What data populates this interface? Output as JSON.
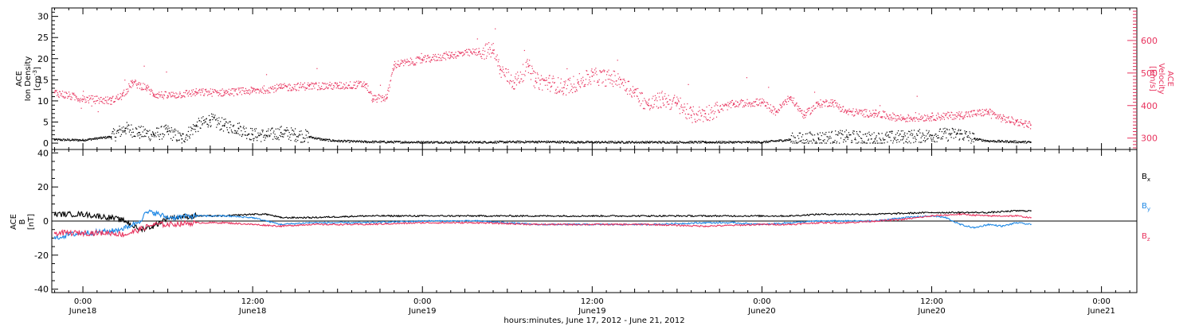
{
  "colors": {
    "black": "#000000",
    "pink": "#e8335e",
    "blue": "#1e88e5"
  },
  "xaxis": {
    "ticks": [
      {
        "t": 0,
        "time": "0:00",
        "day": "June18"
      },
      {
        "t": 12,
        "time": "12:00",
        "day": "June18"
      },
      {
        "t": 24,
        "time": "0:00",
        "day": "June19"
      },
      {
        "t": 36,
        "time": "12:00",
        "day": "June19"
      },
      {
        "t": 48,
        "time": "0:00",
        "day": "June20"
      },
      {
        "t": 60,
        "time": "12:00",
        "day": "June20"
      },
      {
        "t": 72,
        "time": "0:00",
        "day": "June21"
      }
    ],
    "title": "hours:minutes, June 17, 2012 - June 21, 2012"
  },
  "chart_data": [
    {
      "type": "scatter",
      "panel": "plasma",
      "x_units": "hours since June 18 0:00",
      "x_range": [
        -2.2,
        74.5
      ],
      "left_axis": {
        "label_lines": [
          "ACE",
          "Ion Density"
        ],
        "units": "[cm",
        "units_sup": "-3",
        "units_close": "]",
        "range": [
          -1.5,
          32
        ],
        "ticks": [
          0,
          5,
          10,
          15,
          20,
          25,
          30
        ]
      },
      "right_axis": {
        "label_lines": [
          "ACE",
          "Velocity"
        ],
        "units": "[km/s]",
        "range": [
          265,
          700
        ],
        "ticks": [
          300,
          400,
          500,
          600
        ]
      },
      "series": [
        {
          "name": "",
          "axis": "right",
          "color": "pink",
          "points": [
            [
              -2,
              440
            ],
            [
              0,
              420
            ],
            [
              2,
              415
            ],
            [
              2.8,
              430
            ],
            [
              3.5,
              470
            ],
            [
              4.5,
              455
            ],
            [
              5,
              435
            ],
            [
              6,
              430
            ],
            [
              8,
              440
            ],
            [
              10,
              440
            ],
            [
              12,
              445
            ],
            [
              14,
              455
            ],
            [
              16,
              460
            ],
            [
              18,
              460
            ],
            [
              20,
              465
            ],
            [
              20.5,
              420
            ],
            [
              21.5,
              425
            ],
            [
              22,
              525
            ],
            [
              24,
              540
            ],
            [
              26,
              555
            ],
            [
              28,
              565
            ],
            [
              29,
              570
            ],
            [
              29.5,
              510
            ],
            [
              30.5,
              470
            ],
            [
              31.5,
              520
            ],
            [
              32,
              475
            ],
            [
              33,
              470
            ],
            [
              34,
              455
            ],
            [
              35,
              470
            ],
            [
              36,
              490
            ],
            [
              38,
              480
            ],
            [
              39,
              440
            ],
            [
              40,
              400
            ],
            [
              41,
              420
            ],
            [
              42,
              405
            ],
            [
              43,
              370
            ],
            [
              44,
              375
            ],
            [
              46,
              405
            ],
            [
              48,
              410
            ],
            [
              49,
              380
            ],
            [
              50,
              425
            ],
            [
              51,
              370
            ],
            [
              52,
              405
            ],
            [
              53,
              410
            ],
            [
              54,
              380
            ],
            [
              56,
              375
            ],
            [
              58,
              360
            ],
            [
              60,
              365
            ],
            [
              62,
              370
            ],
            [
              64,
              380
            ],
            [
              65,
              360
            ],
            [
              66,
              350
            ],
            [
              67,
              340
            ]
          ]
        },
        {
          "name": "",
          "axis": "left",
          "color": "black",
          "points": [
            [
              -2,
              0.8
            ],
            [
              0,
              0.7
            ],
            [
              2,
              1.5
            ],
            [
              3,
              3.5
            ],
            [
              4,
              2.5
            ],
            [
              5,
              2.0
            ],
            [
              6,
              2.8
            ],
            [
              7,
              1.0
            ],
            [
              8,
              4.0
            ],
            [
              9,
              5.5
            ],
            [
              10,
              4.2
            ],
            [
              11,
              3.5
            ],
            [
              12,
              2.0
            ],
            [
              13,
              1.8
            ],
            [
              14,
              2.5
            ],
            [
              15,
              2.0
            ],
            [
              16,
              1.5
            ],
            [
              17,
              0.8
            ],
            [
              18,
              0.5
            ],
            [
              20,
              0.3
            ],
            [
              24,
              0.2
            ],
            [
              28,
              0.2
            ],
            [
              32,
              0.3
            ],
            [
              36,
              0.2
            ],
            [
              40,
              0.2
            ],
            [
              44,
              0.2
            ],
            [
              47,
              0.2
            ],
            [
              48,
              0.2
            ],
            [
              50,
              0.8
            ],
            [
              52,
              1.2
            ],
            [
              54,
              1.5
            ],
            [
              56,
              1.0
            ],
            [
              58,
              1.5
            ],
            [
              60,
              1.8
            ],
            [
              62,
              2.2
            ],
            [
              63,
              1.0
            ],
            [
              64,
              0.5
            ],
            [
              67,
              0.2
            ]
          ]
        }
      ]
    },
    {
      "type": "line",
      "panel": "magnetic",
      "x_units": "hours since June 18 0:00",
      "x_range": [
        -2.2,
        74.5
      ],
      "y_axis": {
        "label_lines": [
          "ACE",
          "B"
        ],
        "units": "[nT]",
        "range": [
          -42,
          42
        ],
        "ticks": [
          -40,
          -20,
          0,
          20,
          40
        ]
      },
      "series": [
        {
          "name": "Bx",
          "label": "B",
          "sub": "x",
          "color": "black",
          "points": [
            [
              -2,
              4
            ],
            [
              0,
              4
            ],
            [
              2,
              2
            ],
            [
              3,
              0
            ],
            [
              4,
              -5
            ],
            [
              5,
              -3
            ],
            [
              6,
              2
            ],
            [
              8,
              3
            ],
            [
              10,
              3
            ],
            [
              12,
              4
            ],
            [
              13,
              4
            ],
            [
              14,
              2
            ],
            [
              16,
              2
            ],
            [
              20,
              3
            ],
            [
              24,
              3
            ],
            [
              28,
              3
            ],
            [
              32,
              3
            ],
            [
              36,
              3
            ],
            [
              40,
              3
            ],
            [
              44,
              3
            ],
            [
              48,
              3
            ],
            [
              50,
              3
            ],
            [
              52,
              4
            ],
            [
              56,
              4
            ],
            [
              60,
              5
            ],
            [
              62,
              5
            ],
            [
              64,
              5
            ],
            [
              66,
              6
            ],
            [
              67,
              6
            ]
          ]
        },
        {
          "name": "By",
          "label": "B",
          "sub": "y",
          "color": "blue",
          "points": [
            [
              -2,
              -10
            ],
            [
              -1,
              -8
            ],
            [
              0,
              -7
            ],
            [
              2,
              -6
            ],
            [
              3,
              -4
            ],
            [
              4,
              0
            ],
            [
              4.5,
              5
            ],
            [
              5,
              5
            ],
            [
              6,
              2
            ],
            [
              8,
              3
            ],
            [
              10,
              3
            ],
            [
              12,
              2
            ],
            [
              14,
              -2
            ],
            [
              16,
              -1
            ],
            [
              20,
              -1
            ],
            [
              24,
              0
            ],
            [
              26,
              0
            ],
            [
              28,
              0
            ],
            [
              30,
              -1
            ],
            [
              32,
              -2
            ],
            [
              36,
              -2
            ],
            [
              40,
              -2
            ],
            [
              44,
              -1
            ],
            [
              46,
              -1
            ],
            [
              48,
              -2
            ],
            [
              50,
              -1
            ],
            [
              52,
              0
            ],
            [
              54,
              0
            ],
            [
              56,
              0
            ],
            [
              58,
              2
            ],
            [
              60,
              3
            ],
            [
              61,
              2
            ],
            [
              62,
              -2
            ],
            [
              63,
              -4
            ],
            [
              64,
              -2
            ],
            [
              65,
              -3
            ],
            [
              66,
              -1
            ],
            [
              67,
              -2
            ]
          ]
        },
        {
          "name": "Bz",
          "label": "B",
          "sub": "z",
          "color": "pink",
          "points": [
            [
              -2,
              -7
            ],
            [
              0,
              -7
            ],
            [
              2,
              -7
            ],
            [
              3,
              -8
            ],
            [
              4,
              -5
            ],
            [
              5,
              -2
            ],
            [
              6,
              -2
            ],
            [
              8,
              -1
            ],
            [
              10,
              -1
            ],
            [
              12,
              -2
            ],
            [
              14,
              -3
            ],
            [
              16,
              -2
            ],
            [
              20,
              -2
            ],
            [
              24,
              -1
            ],
            [
              28,
              -1
            ],
            [
              32,
              -2
            ],
            [
              36,
              -2
            ],
            [
              40,
              -2
            ],
            [
              44,
              -3
            ],
            [
              48,
              -2
            ],
            [
              50,
              -2
            ],
            [
              52,
              -1
            ],
            [
              54,
              -1
            ],
            [
              56,
              0
            ],
            [
              58,
              1
            ],
            [
              60,
              3
            ],
            [
              62,
              4
            ],
            [
              64,
              3
            ],
            [
              66,
              3
            ],
            [
              67,
              2
            ]
          ]
        }
      ]
    }
  ]
}
